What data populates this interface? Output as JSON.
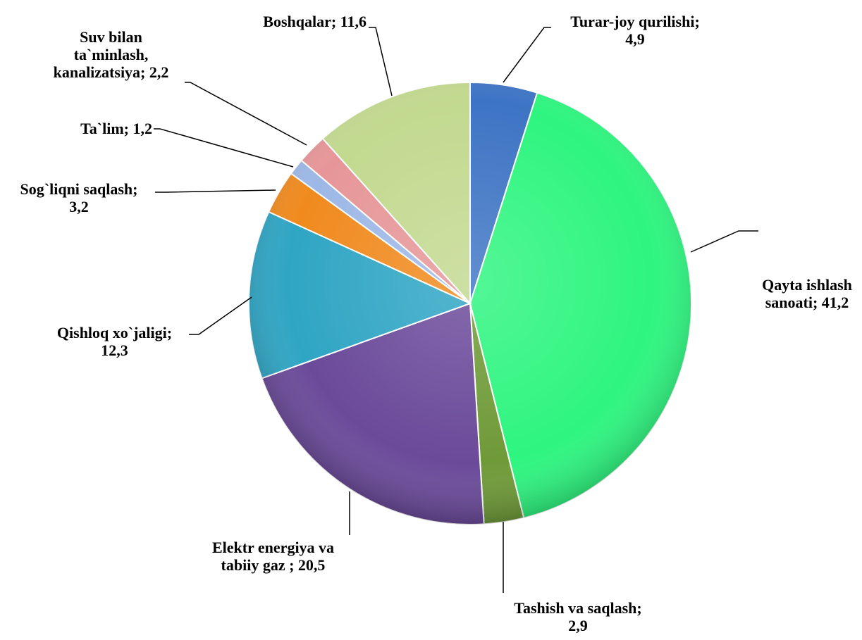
{
  "chart_data": {
    "type": "pie",
    "title": "",
    "start_angle_deg": 0,
    "direction": "clockwise",
    "slices": [
      {
        "label_lines": [
          "Turar-joy qurilishi;",
          "4,9"
        ],
        "value": 4.9,
        "color": "#3d74c4"
      },
      {
        "label_lines": [
          "Qayta ishlash",
          "sanoati; 41,2"
        ],
        "value": 41.2,
        "color": "#2ef57f"
      },
      {
        "label_lines": [
          "Tashish va saqlash;",
          "2,9"
        ],
        "value": 2.9,
        "color": "#6f9a38"
      },
      {
        "label_lines": [
          "Elektr energiya va",
          "tabiiy gaz ; 20,5"
        ],
        "value": 20.5,
        "color": "#6b4a9a"
      },
      {
        "label_lines": [
          "Qishloq xo`jaligi;",
          "12,3"
        ],
        "value": 12.3,
        "color": "#2fa5c4"
      },
      {
        "label_lines": [
          "Sog`liqni saqlash;",
          "3,2"
        ],
        "value": 3.2,
        "color": "#f08a1e"
      },
      {
        "label_lines": [
          "Ta`lim; 1,2"
        ],
        "value": 1.2,
        "color": "#9db8e6"
      },
      {
        "label_lines": [
          "Suv bilan",
          "ta`minlash,",
          "kanalizatsiya; 2,2"
        ],
        "value": 2.2,
        "color": "#e69698"
      },
      {
        "label_lines": [
          "Boshqalar; 11,6"
        ],
        "value": 11.6,
        "color": "#c2d98f"
      }
    ]
  }
}
